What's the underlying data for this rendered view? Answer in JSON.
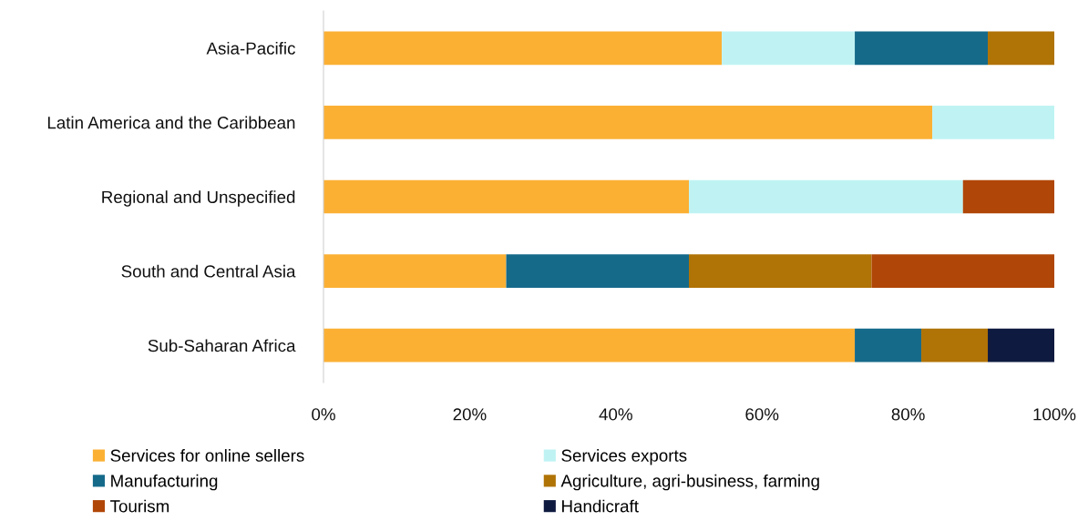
{
  "chart_data": {
    "type": "bar",
    "orientation": "horizontal",
    "stacked": true,
    "categories": [
      "Asia-Pacific",
      "Latin America and the Caribbean",
      "Regional and Unspecified",
      "South and Central Asia",
      "Sub-Saharan Africa"
    ],
    "series": [
      {
        "name": "Services for online sellers",
        "color": "#fbb034",
        "values": [
          54.5,
          83.3,
          50,
          25,
          72.7
        ]
      },
      {
        "name": "Services exports",
        "color": "#bff3f3",
        "values": [
          18.2,
          16.7,
          37.5,
          null,
          null
        ]
      },
      {
        "name": "Manufacturing",
        "color": "#156a8a",
        "values": [
          18.2,
          null,
          null,
          25,
          9.1
        ]
      },
      {
        "name": "Agriculture, agri-business, farming",
        "color": "#b07305",
        "values": [
          9.1,
          null,
          null,
          25,
          9.1
        ]
      },
      {
        "name": "Tourism",
        "color": "#b04607",
        "values": [
          null,
          null,
          12.5,
          25,
          null
        ]
      },
      {
        "name": "Handicraft",
        "color": "#0f1a40",
        "values": [
          null,
          null,
          null,
          null,
          9.1
        ]
      }
    ],
    "xlim": [
      0,
      100
    ],
    "xticks": [
      {
        "value": 0,
        "label": "0%"
      },
      {
        "value": 20,
        "label": "20%"
      },
      {
        "value": 40,
        "label": "40%"
      },
      {
        "value": 60,
        "label": "60%"
      },
      {
        "value": 80,
        "label": "80%"
      },
      {
        "value": 100,
        "label": "100%"
      }
    ],
    "grid": false,
    "legend": "bottom"
  }
}
